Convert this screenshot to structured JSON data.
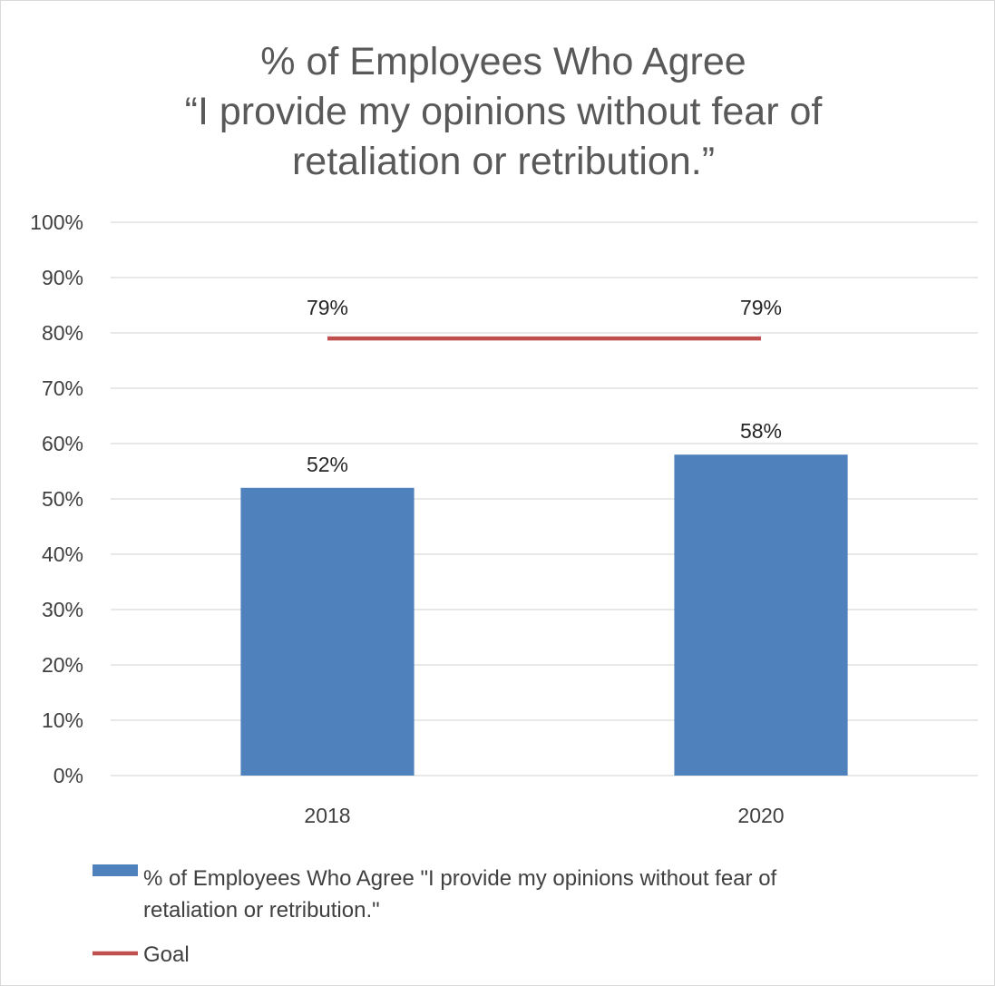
{
  "chart_data": {
    "type": "bar",
    "title_lines": [
      "% of Employees Who Agree",
      "“I provide my opinions without fear of",
      "retaliation or retribution.”"
    ],
    "categories": [
      "2018",
      "2020"
    ],
    "ylim": [
      0,
      100
    ],
    "y_ticks": [
      "0%",
      "10%",
      "20%",
      "30%",
      "40%",
      "50%",
      "60%",
      "70%",
      "80%",
      "90%",
      "100%"
    ],
    "grid": true,
    "legend_position": "bottom",
    "series": [
      {
        "type": "bar",
        "legend_lines": [
          "% of Employees Who Agree \"I provide my opinions without fear of",
          "retaliation or retribution.\""
        ],
        "values": [
          52,
          58
        ],
        "labels": [
          "52%",
          "58%"
        ],
        "color": "#4F81BD"
      },
      {
        "type": "line",
        "legend_lines": [
          "Goal"
        ],
        "values": [
          79,
          79
        ],
        "labels": [
          "79%",
          "79%"
        ],
        "color": "#C0504D"
      }
    ]
  }
}
